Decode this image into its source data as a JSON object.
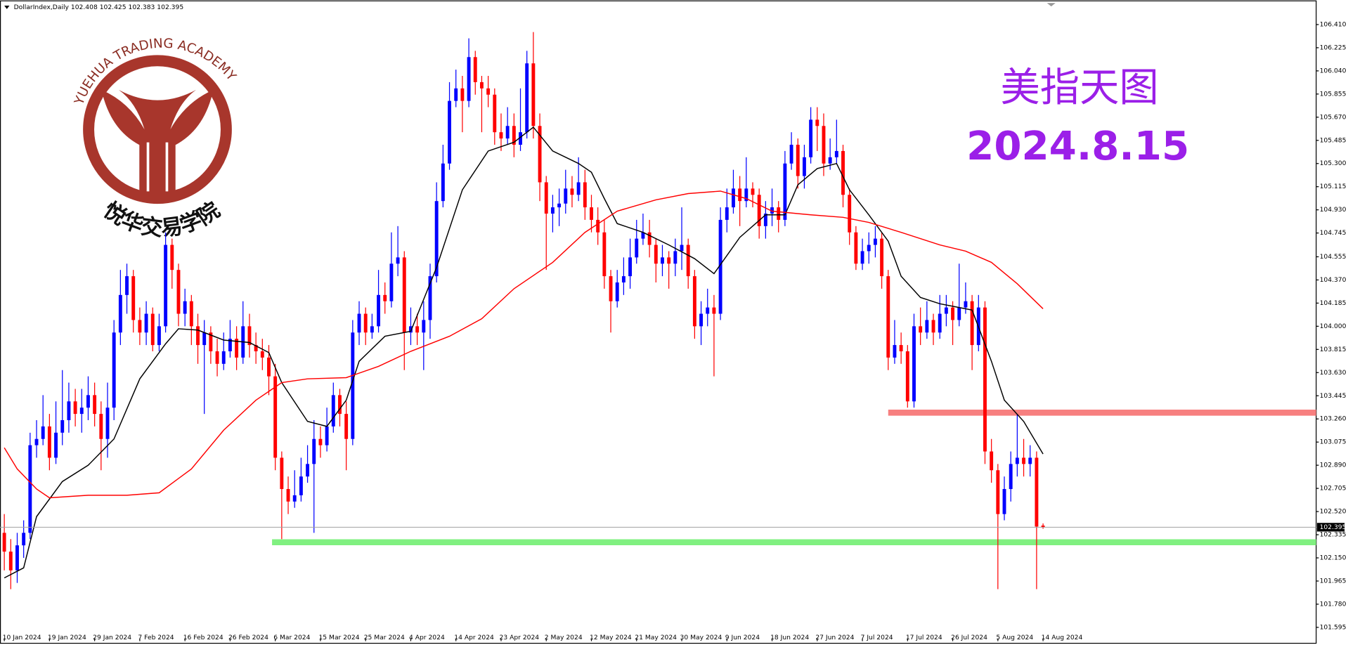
{
  "chart_data": {
    "type": "candlestick",
    "symbol": "DollarIndex,Daily",
    "title": "美指天图",
    "date_label": "2024.8.15",
    "logo": {
      "top_text": "YUEHUA TRADING ACADEMY",
      "bottom_text": "悦华交易学院"
    },
    "up_color": "#0000ff",
    "down_color": "#ff0000",
    "ylim": [
      101.485,
      106.534
    ],
    "yticks": [
      {
        "value": 106.41,
        "label": "106.410"
      },
      106.225,
      {
        "value": 106.04,
        "label": "106.040"
      },
      105.855,
      {
        "value": 105.67,
        "label": "105.670"
      },
      105.485,
      {
        "value": 105.3,
        "label": "105.300"
      },
      105.115,
      {
        "value": 104.93,
        "label": "104.930"
      },
      104.745,
      104.555,
      {
        "value": 104.37,
        "label": "104.370"
      },
      104.185,
      {
        "value": 104,
        "label": "104.000"
      },
      103.815,
      {
        "value": 103.63,
        "label": "103.630"
      },
      103.445,
      {
        "value": 103.26,
        "label": "103.260"
      },
      103.075,
      {
        "value": 102.89,
        "label": "102.890"
      },
      102.705,
      {
        "value": 102.52,
        "label": "102.520"
      },
      102.335,
      {
        "value": 102.15,
        "label": "102.150"
      },
      101.965,
      {
        "value": 101.78,
        "label": "101.780"
      },
      101.595
    ],
    "x_labels": [
      "10 Jan 2024",
      "19 Jan 2024",
      "29 Jan 2024",
      "7 Feb 2024",
      "16 Feb 2024",
      "26 Feb 2024",
      "6 Mar 2024",
      "15 Mar 2024",
      "25 Mar 2024",
      "4 Apr 2024",
      "14 Apr 2024",
      "23 Apr 2024",
      "2 May 2024",
      "12 May 2024",
      "21 May 2024",
      "30 May 2024",
      "9 Jun 2024",
      "18 Jun 2024",
      "27 Jun 2024",
      "7 Jul 2024",
      "17 Jul 2024",
      "26 Jul 2024",
      "5 Aug 2024",
      "14 Aug 2024"
    ],
    "candles": [
      [
        102.35,
        102.5,
        102.05,
        102.2
      ],
      [
        102.2,
        102.3,
        101.9,
        102.05
      ],
      [
        102.05,
        102.35,
        101.95,
        102.25
      ],
      [
        102.25,
        102.45,
        102.15,
        102.35
      ],
      [
        102.35,
        103.15,
        102.3,
        103.05
      ],
      [
        103.05,
        103.25,
        102.95,
        103.1
      ],
      [
        103.1,
        103.45,
        103.05,
        103.2
      ],
      [
        103.2,
        103.3,
        102.85,
        102.95
      ],
      [
        102.95,
        103.4,
        102.9,
        103.15
      ],
      [
        103.15,
        103.65,
        103.05,
        103.25
      ],
      [
        103.25,
        103.55,
        103.15,
        103.4
      ],
      [
        103.4,
        103.5,
        103.2,
        103.3
      ],
      [
        103.3,
        103.5,
        103.15,
        103.35
      ],
      [
        103.35,
        103.6,
        103.25,
        103.45
      ],
      [
        103.45,
        103.55,
        103.2,
        103.3
      ],
      [
        103.3,
        103.4,
        102.85,
        103.1
      ],
      [
        103.1,
        103.55,
        102.95,
        103.35
      ],
      [
        103.35,
        104.05,
        103.25,
        103.95
      ],
      [
        103.95,
        104.45,
        103.85,
        104.25
      ],
      [
        104.25,
        104.5,
        104.1,
        104.4
      ],
      [
        104.4,
        104.45,
        103.95,
        104.05
      ],
      [
        104.05,
        104.15,
        103.85,
        103.95
      ],
      [
        103.95,
        104.2,
        103.85,
        104.1
      ],
      [
        104.1,
        104.15,
        103.8,
        103.85
      ],
      [
        103.85,
        104.1,
        103.8,
        104
      ],
      [
        104,
        104.75,
        103.95,
        104.65
      ],
      [
        104.65,
        104.7,
        104.3,
        104.45
      ],
      [
        104.45,
        104.5,
        104,
        104.1
      ],
      [
        104.1,
        104.3,
        104,
        104.2
      ],
      [
        104.2,
        104.25,
        103.85,
        104
      ],
      [
        104,
        104.1,
        103.7,
        103.85
      ],
      [
        103.85,
        104.05,
        103.3,
        103.95
      ],
      [
        103.95,
        104,
        103.7,
        103.8
      ],
      [
        103.8,
        103.9,
        103.6,
        103.7
      ],
      [
        103.7,
        103.95,
        103.65,
        103.8
      ],
      [
        103.8,
        104.05,
        103.75,
        103.9
      ],
      [
        103.9,
        104,
        103.65,
        103.75
      ],
      [
        103.75,
        104.2,
        103.7,
        104
      ],
      [
        104,
        104.1,
        103.75,
        103.85
      ],
      [
        103.85,
        103.95,
        103.7,
        103.8
      ],
      [
        103.8,
        103.9,
        103.65,
        103.75
      ],
      [
        103.75,
        103.85,
        103.45,
        103.6
      ],
      [
        103.6,
        103.7,
        102.85,
        102.95
      ],
      [
        102.95,
        103,
        102.3,
        102.7
      ],
      [
        102.7,
        102.8,
        102.5,
        102.6
      ],
      [
        102.6,
        102.85,
        102.55,
        102.65
      ],
      [
        102.65,
        102.95,
        102.6,
        102.8
      ],
      [
        102.8,
        103.05,
        102.75,
        102.9
      ],
      [
        102.9,
        103.25,
        102.35,
        103.1
      ],
      [
        103.1,
        103.2,
        102.95,
        103.05
      ],
      [
        103.05,
        103.35,
        103,
        103.2
      ],
      [
        103.2,
        103.55,
        103.15,
        103.45
      ],
      [
        103.45,
        103.5,
        103.2,
        103.3
      ],
      [
        103.3,
        103.4,
        102.85,
        103.1
      ],
      [
        103.1,
        104.05,
        103.05,
        103.95
      ],
      [
        103.95,
        104.2,
        103.85,
        104.1
      ],
      [
        104.1,
        104.15,
        103.85,
        103.95
      ],
      [
        103.95,
        104.1,
        103.9,
        104
      ],
      [
        104,
        104.45,
        103.95,
        104.25
      ],
      [
        104.25,
        104.35,
        104.1,
        104.2
      ],
      [
        104.2,
        104.75,
        104.15,
        104.5
      ],
      [
        104.5,
        104.8,
        104.4,
        104.55
      ],
      [
        104.55,
        104.6,
        103.65,
        103.95
      ],
      [
        103.95,
        104.15,
        103.85,
        104
      ],
      [
        104,
        104.1,
        103.85,
        103.95
      ],
      [
        103.95,
        104.2,
        103.65,
        104.05
      ],
      [
        104.05,
        104.5,
        103.9,
        104.4
      ],
      [
        104.4,
        105.15,
        104.35,
        105
      ],
      [
        105,
        105.45,
        104.95,
        105.3
      ],
      [
        105.3,
        105.95,
        105.25,
        105.8
      ],
      [
        105.8,
        106.05,
        105.75,
        105.9
      ],
      [
        105.9,
        106,
        105.55,
        105.8
      ],
      [
        105.8,
        106.3,
        105.75,
        106.15
      ],
      [
        106.15,
        106.2,
        105.85,
        105.95
      ],
      [
        105.95,
        106,
        105.55,
        105.9
      ],
      [
        105.9,
        106,
        105.75,
        105.85
      ],
      [
        105.85,
        105.9,
        105.45,
        105.55
      ],
      [
        105.55,
        105.7,
        105.4,
        105.5
      ],
      [
        105.5,
        105.75,
        105.45,
        105.6
      ],
      [
        105.6,
        105.7,
        105.35,
        105.45
      ],
      [
        105.45,
        105.9,
        105.4,
        105.55
      ],
      [
        105.55,
        106.2,
        105.5,
        106.1
      ],
      [
        106.1,
        106.35,
        105.5,
        105.6
      ],
      [
        105.6,
        105.7,
        105,
        105.15
      ],
      [
        105.15,
        105.2,
        104.45,
        104.9
      ],
      [
        104.9,
        105.05,
        104.75,
        104.95
      ],
      [
        104.95,
        105.1,
        104.8,
        104.98
      ],
      [
        104.98,
        105.25,
        104.9,
        105.1
      ],
      [
        105.1,
        105.2,
        104.95,
        105.05
      ],
      [
        105.05,
        105.35,
        105,
        105.15
      ],
      [
        105.15,
        105.25,
        104.85,
        104.95
      ],
      [
        104.95,
        105.05,
        104.75,
        104.85
      ],
      [
        104.85,
        104.95,
        104.65,
        104.75
      ],
      [
        104.75,
        104.85,
        104.3,
        104.4
      ],
      [
        104.4,
        104.45,
        103.95,
        104.2
      ],
      [
        104.2,
        104.45,
        104.15,
        104.35
      ],
      [
        104.35,
        104.55,
        104.25,
        104.4
      ],
      [
        104.4,
        104.7,
        104.3,
        104.55
      ],
      [
        104.55,
        104.85,
        104.5,
        104.7
      ],
      [
        104.7,
        104.9,
        104.65,
        104.75
      ],
      [
        104.75,
        104.85,
        104.55,
        104.65
      ],
      [
        104.65,
        104.7,
        104.35,
        104.5
      ],
      [
        104.5,
        104.65,
        104.4,
        104.55
      ],
      [
        104.55,
        104.6,
        104.3,
        104.5
      ],
      [
        104.5,
        104.7,
        104.4,
        104.6
      ],
      [
        104.6,
        104.95,
        104.45,
        104.65
      ],
      [
        104.65,
        104.7,
        104.3,
        104.4
      ],
      [
        104.4,
        104.45,
        103.9,
        104
      ],
      [
        104,
        104.2,
        103.85,
        104.1
      ],
      [
        104.1,
        104.3,
        104,
        104.15
      ],
      [
        104.15,
        104.25,
        103.6,
        104.1
      ],
      [
        104.1,
        104.95,
        104.05,
        104.85
      ],
      [
        104.85,
        105.1,
        104.75,
        104.95
      ],
      [
        104.95,
        105.25,
        104.9,
        105.1
      ],
      [
        105.1,
        105.2,
        104.8,
        105
      ],
      [
        105,
        105.35,
        104.95,
        105.1
      ],
      [
        105.1,
        105.15,
        104.95,
        105.05
      ],
      [
        105.05,
        105.1,
        104.7,
        104.8
      ],
      [
        104.8,
        105,
        104.7,
        104.9
      ],
      [
        104.9,
        105.1,
        104.8,
        104.95
      ],
      [
        104.95,
        105,
        104.75,
        104.85
      ],
      [
        104.85,
        105.4,
        104.8,
        105.3
      ],
      [
        105.3,
        105.55,
        105.25,
        105.45
      ],
      [
        105.45,
        105.5,
        105.1,
        105.2
      ],
      [
        105.2,
        105.45,
        105.1,
        105.35
      ],
      [
        105.35,
        105.75,
        105.3,
        105.65
      ],
      [
        105.65,
        105.75,
        105.4,
        105.6
      ],
      [
        105.6,
        105.7,
        105.2,
        105.3
      ],
      [
        105.3,
        105.5,
        105.25,
        105.35
      ],
      [
        105.35,
        105.65,
        105.3,
        105.4
      ],
      [
        105.4,
        105.45,
        104.95,
        105.05
      ],
      [
        105.05,
        105.1,
        104.65,
        104.75
      ],
      [
        104.75,
        104.8,
        104.45,
        104.5
      ],
      [
        104.5,
        104.7,
        104.45,
        104.6
      ],
      [
        104.6,
        104.75,
        104.5,
        104.65
      ],
      [
        104.65,
        104.8,
        104.55,
        104.7
      ],
      [
        104.7,
        104.75,
        104.3,
        104.4
      ],
      [
        104.4,
        104.45,
        103.65,
        103.75
      ],
      [
        103.75,
        104.05,
        103.7,
        103.85
      ],
      [
        103.85,
        103.95,
        103.7,
        103.8
      ],
      [
        103.8,
        103.85,
        103.35,
        103.4
      ],
      [
        103.4,
        104.1,
        103.35,
        104
      ],
      [
        104,
        104.15,
        103.85,
        103.95
      ],
      [
        103.95,
        104.2,
        103.9,
        104.05
      ],
      [
        104.05,
        104.1,
        103.85,
        103.95
      ],
      [
        103.95,
        104.25,
        103.9,
        104.1
      ],
      [
        104.1,
        104.25,
        104,
        104.15
      ],
      [
        104.15,
        104.2,
        103.85,
        104.05
      ],
      [
        104.05,
        104.5,
        104,
        104.15
      ],
      [
        104.15,
        104.35,
        104.1,
        104.2
      ],
      [
        104.2,
        104.25,
        103.65,
        103.85
      ],
      [
        103.85,
        104.25,
        103.8,
        104.15
      ],
      [
        104.15,
        104.2,
        102.9,
        103
      ],
      [
        103,
        103.1,
        102.75,
        102.85
      ],
      [
        102.85,
        102.9,
        101.9,
        102.5
      ],
      [
        102.5,
        102.8,
        102.45,
        102.7
      ],
      [
        102.7,
        103,
        102.6,
        102.9
      ],
      [
        102.9,
        103.3,
        102.8,
        102.95
      ],
      [
        102.95,
        103.1,
        102.8,
        102.9
      ],
      [
        102.9,
        103.05,
        102.8,
        102.95
      ],
      [
        102.95,
        103,
        101.9,
        102.4
      ],
      [
        102.408,
        102.425,
        102.383,
        102.395
      ]
    ],
    "moving_averages": [
      {
        "color": "#000000",
        "x": [
          0,
          3,
          5,
          9,
          13,
          17,
          21,
          25,
          27,
          30,
          34,
          38,
          41,
          43,
          47,
          50,
          53,
          55,
          59,
          63,
          67,
          71,
          75,
          79,
          82,
          85,
          89,
          91,
          93,
          95,
          99,
          103,
          107,
          110,
          114,
          118,
          121,
          123,
          126,
          129,
          131,
          134,
          137,
          139,
          142,
          145,
          147,
          150,
          153,
          155,
          158,
          161
        ],
        "values": [
          101.99,
          102.07,
          102.48,
          102.76,
          102.89,
          103.1,
          103.58,
          103.86,
          103.98,
          103.97,
          103.89,
          103.87,
          103.79,
          103.55,
          103.24,
          103.2,
          103.41,
          103.72,
          103.92,
          103.96,
          104.47,
          105.09,
          105.4,
          105.47,
          105.59,
          105.4,
          105.3,
          105.23,
          105.02,
          104.82,
          104.75,
          104.65,
          104.54,
          104.42,
          104.71,
          104.89,
          104.89,
          105.13,
          105.26,
          105.3,
          105.09,
          104.89,
          104.68,
          104.4,
          104.23,
          104.18,
          104.16,
          104.13,
          103.72,
          103.41,
          103.24,
          102.98
        ]
      },
      {
        "color": "#ff0000",
        "x": [
          0,
          2,
          5,
          7,
          13,
          19,
          24,
          29,
          34,
          39,
          43,
          47,
          53,
          58,
          63,
          69,
          74,
          79,
          85,
          90,
          95,
          101,
          106,
          111,
          115,
          119,
          125,
          130,
          134,
          139,
          145,
          149,
          153,
          157,
          161
        ],
        "values": [
          103.03,
          102.86,
          102.7,
          102.63,
          102.65,
          102.65,
          102.67,
          102.86,
          103.17,
          103.41,
          103.55,
          103.58,
          103.59,
          103.68,
          103.8,
          103.92,
          104.06,
          104.3,
          104.51,
          104.75,
          104.92,
          105.01,
          105.06,
          105.08,
          105.02,
          104.92,
          104.89,
          104.87,
          104.83,
          104.75,
          104.65,
          104.6,
          104.51,
          104.34,
          104.14
        ]
      }
    ],
    "levels": [
      {
        "value": 103.31,
        "x_start": 137,
        "color": "#f77f7f"
      },
      {
        "value": 102.275,
        "x_start": 41.5,
        "color": "#80f080"
      }
    ]
  }
}
